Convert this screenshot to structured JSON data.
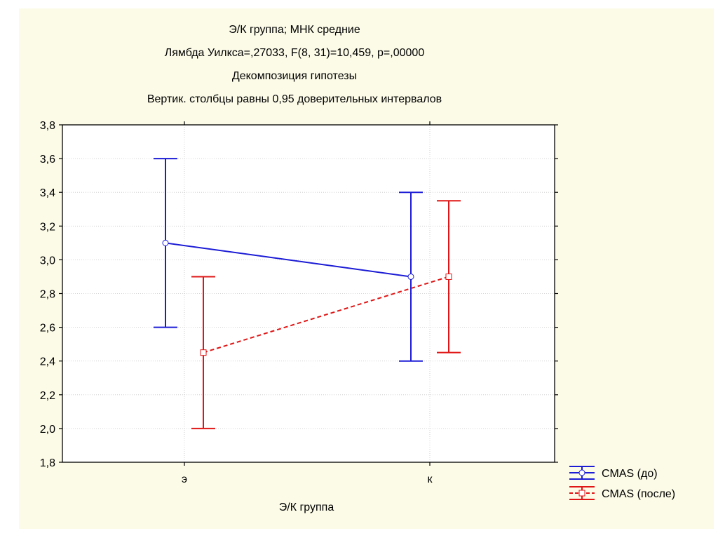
{
  "chart_data": {
    "type": "line",
    "title_lines": [
      "Э/К группа; МНК средние",
      "Лямбда Уилкса=,27033, F(8, 31)=10,459, p=,00000",
      "Декомпозиция гипотезы",
      "Вертик. столбцы равны 0,95 доверительных интервалов"
    ],
    "xlabel": "Э/К группа",
    "ylabel": "",
    "categories": [
      "э",
      "к"
    ],
    "ylim": [
      1.8,
      3.8
    ],
    "yticks": [
      1.8,
      2.0,
      2.2,
      2.4,
      2.6,
      2.8,
      3.0,
      3.2,
      3.4,
      3.6,
      3.8
    ],
    "ytick_labels": [
      "1,8",
      "2,0",
      "2,2",
      "2,4",
      "2,6",
      "2,8",
      "3,0",
      "3,2",
      "3,4",
      "3,6",
      "3,8"
    ],
    "grid": true,
    "legend_position": "bottom-right",
    "series": [
      {
        "name": "CMAS (до)",
        "color": "#1c1cd6",
        "line_style": "solid",
        "marker": "circle",
        "values": [
          3.1,
          2.9
        ],
        "lower": [
          2.6,
          2.4
        ],
        "upper": [
          3.6,
          3.4
        ]
      },
      {
        "name": "CMAS (после)",
        "color": "#e01616",
        "line_style": "dashed",
        "marker": "square",
        "values": [
          2.45,
          2.9
        ],
        "lower": [
          2.0,
          2.45
        ],
        "upper": [
          2.9,
          3.35
        ]
      }
    ]
  }
}
